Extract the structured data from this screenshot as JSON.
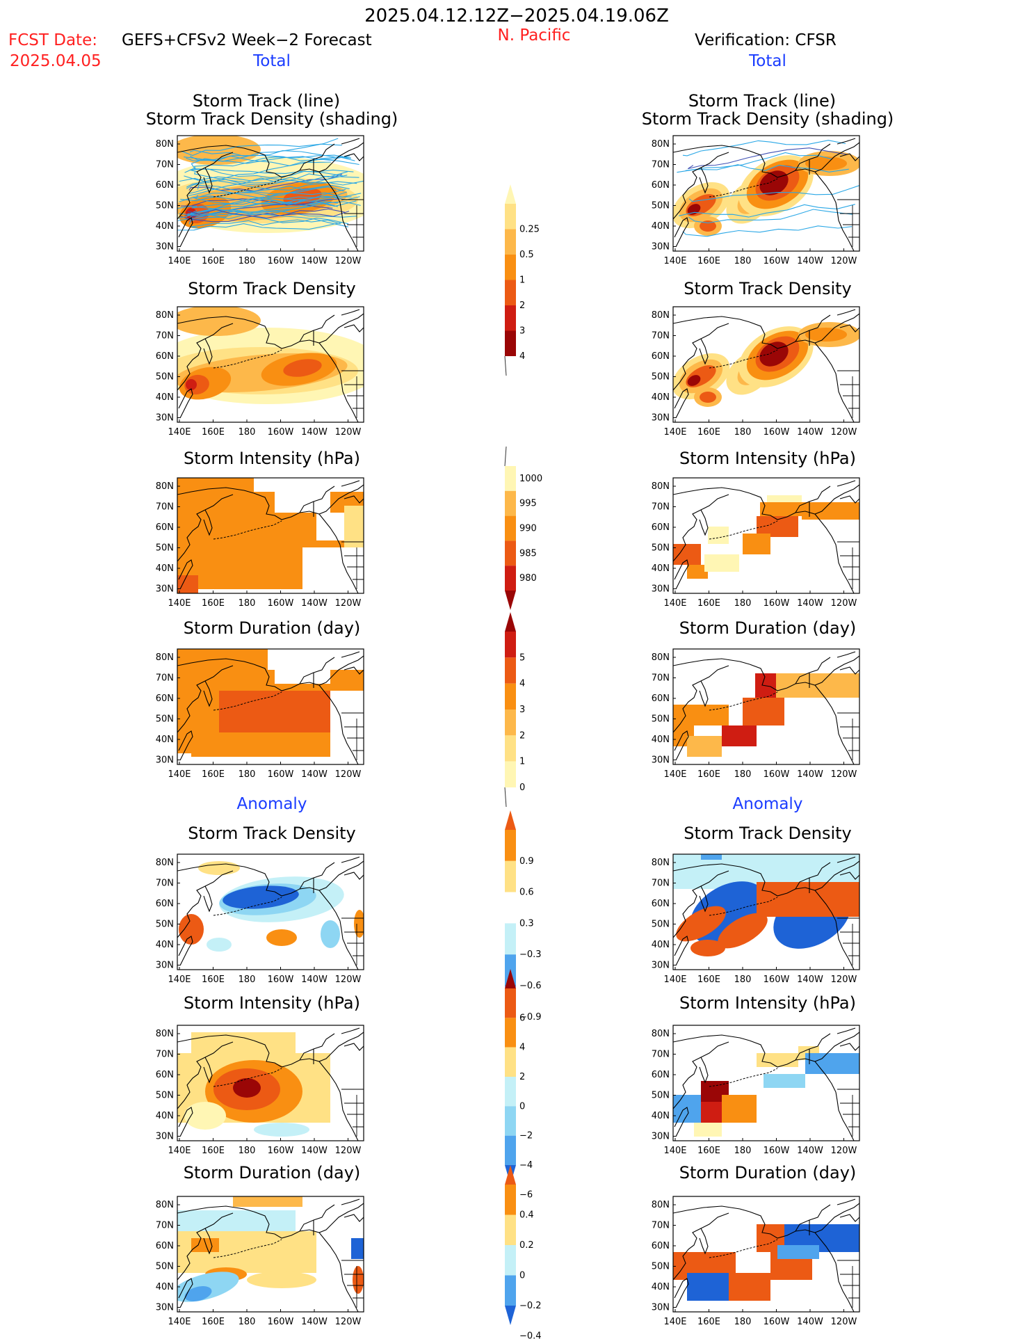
{
  "header": {
    "period": "2025.04.12.12Z−2025.04.19.06Z",
    "fcst_label": "FCST Date:",
    "fcst_model": "GEFS+CFSv2 Week−2 Forecast",
    "fcst_date": "2025.04.05",
    "region": "N. Pacific",
    "verification": "Verification: CFSR",
    "left_total": "Total",
    "right_total": "Total",
    "left_anomaly": "Anomaly",
    "right_anomaly": "Anomaly"
  },
  "colors": {
    "c0": "#fff6b4",
    "c1": "#ffe185",
    "c2": "#fdb84a",
    "c3": "#f98f12",
    "c4": "#ec5a14",
    "c5": "#cf1d12",
    "c6": "#9a0606",
    "b1": "#c4f0f7",
    "b2": "#8ed6f3",
    "b3": "#4fa4ed",
    "b4": "#1e63d6",
    "track": "#29a7e6",
    "track_dark": "#3e4fb3"
  },
  "axes": {
    "lat_ticks": [
      "80N",
      "70N",
      "60N",
      "50N",
      "40N",
      "30N"
    ],
    "lon_ticks": [
      "140E",
      "160E",
      "180",
      "160W",
      "140W",
      "120W"
    ]
  },
  "panels": {
    "left": [
      {
        "title1": "Storm Track (line)",
        "title2": "Storm Track Density (shading)"
      },
      {
        "title1": "Storm Track Density"
      },
      {
        "title1": "Storm Intensity (hPa)"
      },
      {
        "title1": "Storm Duration (day)"
      },
      {
        "title1": "Storm Track Density"
      },
      {
        "title1": "Storm Intensity (hPa)"
      },
      {
        "title1": "Storm Duration (day)"
      }
    ],
    "right": [
      {
        "title1": "Storm Track (line)",
        "title2": "Storm Track Density (shading)"
      },
      {
        "title1": "Storm Track Density"
      },
      {
        "title1": "Storm Intensity (hPa)"
      },
      {
        "title1": "Storm Duration (day)"
      },
      {
        "title1": "Storm Track Density"
      },
      {
        "title1": "Storm Intensity (hPa)"
      },
      {
        "title1": "Storm Duration (day)"
      }
    ]
  },
  "colorbars": [
    {
      "name": "track-density",
      "labels": [
        "0.25",
        "0.5",
        "1",
        "2",
        "3",
        "4"
      ],
      "colors": [
        "c0",
        "c1",
        "c2",
        "c3",
        "c4",
        "c5",
        "c6"
      ],
      "tail": "bottom"
    },
    {
      "name": "intensity",
      "labels": [
        "1000",
        "995",
        "990",
        "985",
        "980"
      ],
      "colors": [
        "c0",
        "c2",
        "c3",
        "c4",
        "c5",
        "c6"
      ],
      "tail": "top"
    },
    {
      "name": "duration",
      "labels": [
        "5",
        "4",
        "3",
        "2",
        "1",
        "0"
      ],
      "colors": [
        "c6",
        "c5",
        "c4",
        "c3",
        "c2",
        "c1",
        "c0"
      ],
      "tail": "bottom"
    },
    {
      "name": "density-anomaly",
      "labels": [
        "0.9",
        "0.6",
        "0.3",
        "−0.3",
        "−0.6",
        "−0.9"
      ],
      "colors": [
        "c4",
        "c3",
        "c1",
        "white",
        "b1",
        "b3",
        "b4"
      ],
      "tail": "none"
    },
    {
      "name": "intensity-anomaly",
      "labels": [
        "6",
        "4",
        "2",
        "0",
        "−2",
        "−4",
        "−6"
      ],
      "colors": [
        "c6",
        "c4",
        "c3",
        "c1",
        "b1",
        "b2",
        "b3",
        "b4"
      ],
      "tail": "none"
    },
    {
      "name": "duration-anomaly",
      "labels": [
        "0.4",
        "0.2",
        "0",
        "−0.2",
        "−0.4"
      ],
      "colors": [
        "c4",
        "c3",
        "c1",
        "b1",
        "b3",
        "b4"
      ],
      "tail": "none"
    }
  ]
}
